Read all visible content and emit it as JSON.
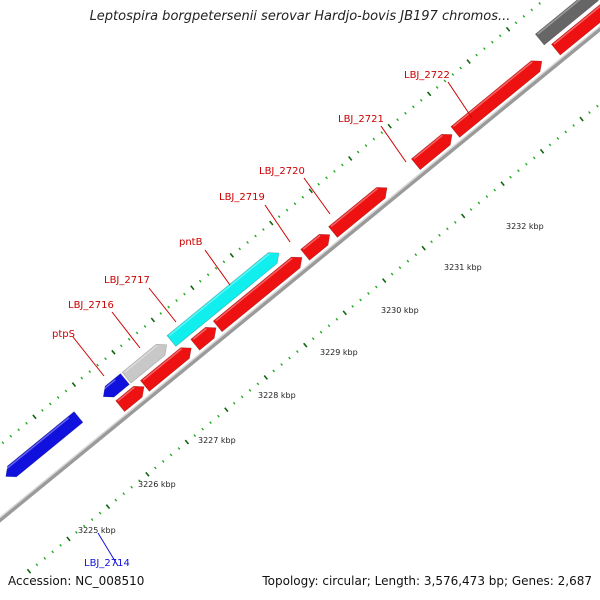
{
  "title": "Leptospira borgpetersenii serovar Hardjo-bovis JB197 chromos...",
  "footer": {
    "accession": "Accession: NC_008510",
    "summary": "Topology: circular; Length: 3,576,473 bp; Genes: 2,687"
  },
  "colors": {
    "forward_cds": "#ee1111",
    "pseudo": "#c8c8c8",
    "highlight": "#11eeee",
    "blue_gene": "#1111dd",
    "other": "#666666",
    "backbone": "#888888",
    "tick_major": "#116611",
    "tick_minor": "#22aa22"
  },
  "ticks": [
    {
      "label": "3225 kbp"
    },
    {
      "label": "3226 kbp"
    },
    {
      "label": "3227 kbp"
    },
    {
      "label": "3228 kbp"
    },
    {
      "label": "3229 kbp"
    },
    {
      "label": "3230 kbp"
    },
    {
      "label": "3231 kbp"
    },
    {
      "label": "3232 kbp"
    }
  ],
  "genes": [
    {
      "name": "LBJ_2714",
      "color": "#1111dd"
    },
    {
      "name": "ptpS",
      "color": "#cc0000"
    },
    {
      "name": "LBJ_2716",
      "color": "#cc0000"
    },
    {
      "name": "LBJ_2717",
      "color": "#cc0000"
    },
    {
      "name": "pntB",
      "color": "#cc0000"
    },
    {
      "name": "LBJ_2719",
      "color": "#cc0000"
    },
    {
      "name": "LBJ_2720",
      "color": "#cc0000"
    },
    {
      "name": "LBJ_2721",
      "color": "#cc0000"
    },
    {
      "name": "LBJ_2722",
      "color": "#cc0000"
    }
  ]
}
